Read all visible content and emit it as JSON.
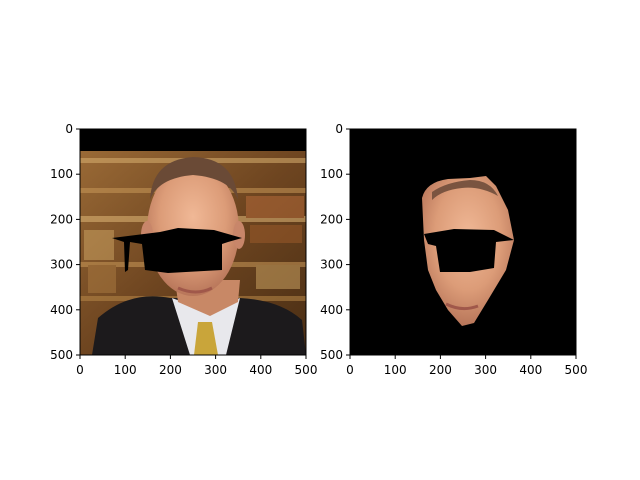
{
  "chart_data": [
    {
      "type": "image",
      "content": "photo-with-masked-region",
      "xlim": [
        0,
        500
      ],
      "ylim": [
        500,
        0
      ],
      "xticks": [
        0,
        100,
        200,
        300,
        400,
        500
      ],
      "yticks": [
        0,
        100,
        200,
        300,
        400,
        500
      ],
      "title": "",
      "xlabel": "",
      "ylabel": ""
    },
    {
      "type": "image",
      "content": "face-segmentation-on-black",
      "xlim": [
        0,
        500
      ],
      "ylim": [
        500,
        0
      ],
      "xticks": [
        0,
        100,
        200,
        300,
        400,
        500
      ],
      "yticks": [
        0,
        100,
        200,
        300,
        400,
        500
      ],
      "title": "",
      "xlabel": "",
      "ylabel": ""
    }
  ],
  "colors": {
    "mask": "#000000",
    "skin": "#e0a07c",
    "background_shelves": "#8a5a2a",
    "suit": "#1c1a1c",
    "shirt": "#e8e8ec",
    "tie": "#c9a53a"
  }
}
